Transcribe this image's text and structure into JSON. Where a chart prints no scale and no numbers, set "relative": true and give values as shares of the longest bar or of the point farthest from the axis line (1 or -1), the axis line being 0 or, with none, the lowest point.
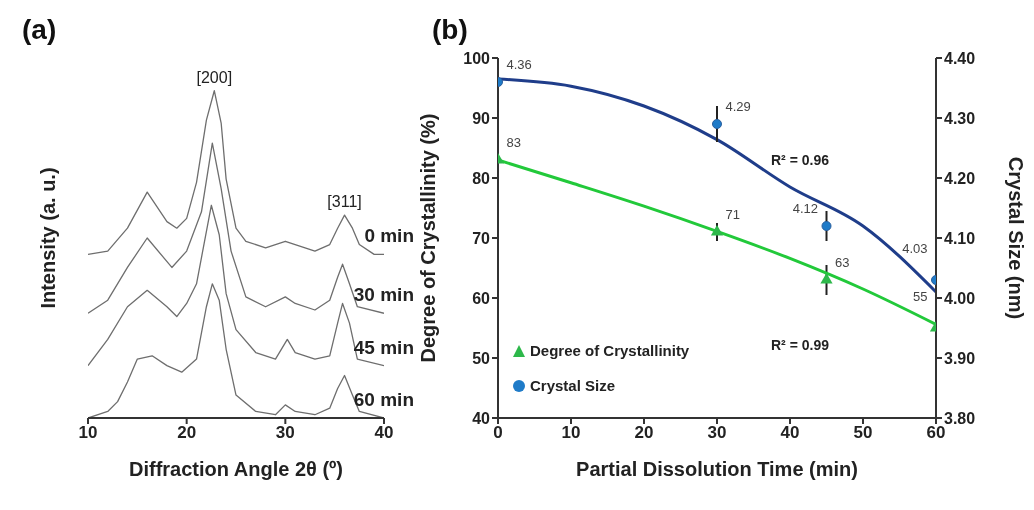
{
  "chart_data": [
    {
      "type": "line",
      "title": "(a)",
      "xlabel": "Diffraction Angle 2θ (º)",
      "ylabel": "Intensity (a. u.)",
      "relative": true,
      "xlim": [
        10,
        40
      ],
      "xticks": [
        10,
        20,
        30,
        40
      ],
      "grid": false,
      "legend": false,
      "marker": "none",
      "annotations": [
        {
          "text": "[200]",
          "x": 22.8,
          "y": 1.0
        },
        {
          "text": "[311]",
          "x": 36,
          "y": 0.62
        }
      ],
      "series": [
        {
          "name": "0 min",
          "color": "#6e6e6e",
          "x": [
            10,
            12,
            14,
            16,
            18,
            19,
            20,
            21,
            22,
            22.8,
            23.5,
            24,
            25,
            26,
            28,
            30,
            31,
            33,
            34.5,
            35.3,
            36,
            36.8,
            37.5,
            39,
            40
          ],
          "values": [
            0.5,
            0.51,
            0.58,
            0.69,
            0.6,
            0.58,
            0.61,
            0.72,
            0.91,
            1.0,
            0.9,
            0.73,
            0.58,
            0.54,
            0.52,
            0.54,
            0.53,
            0.51,
            0.53,
            0.58,
            0.62,
            0.58,
            0.53,
            0.5,
            0.5
          ]
        },
        {
          "name": "30 min",
          "color": "#6e6e6e",
          "x": [
            10,
            12,
            14,
            16,
            18.5,
            20,
            21.5,
            22.6,
            23.5,
            24.5,
            26,
            28,
            30,
            31,
            33,
            34.5,
            35.3,
            35.8,
            36.5,
            37.3,
            40
          ],
          "values": [
            0.32,
            0.36,
            0.46,
            0.55,
            0.46,
            0.51,
            0.63,
            0.84,
            0.7,
            0.51,
            0.37,
            0.34,
            0.37,
            0.35,
            0.33,
            0.36,
            0.43,
            0.47,
            0.41,
            0.34,
            0.32
          ]
        },
        {
          "name": "45 min",
          "color": "#6e6e6e",
          "x": [
            10,
            12,
            14,
            16,
            18,
            19,
            20,
            21,
            22.5,
            23.3,
            24,
            25,
            27,
            29,
            30.2,
            31,
            33,
            34.5,
            35.3,
            35.8,
            36.5,
            37.3,
            40
          ],
          "values": [
            0.16,
            0.24,
            0.34,
            0.39,
            0.34,
            0.31,
            0.35,
            0.41,
            0.65,
            0.56,
            0.38,
            0.27,
            0.2,
            0.18,
            0.24,
            0.2,
            0.18,
            0.19,
            0.29,
            0.35,
            0.29,
            0.18,
            0.16
          ]
        },
        {
          "name": "60 min",
          "color": "#6e6e6e",
          "x": [
            10,
            12,
            13,
            14,
            15,
            16.5,
            18,
            19.5,
            21,
            22,
            22.6,
            23.3,
            24,
            25,
            27,
            29,
            30,
            31,
            33,
            34.5,
            35.3,
            36,
            36.8,
            37.5,
            40
          ],
          "values": [
            0,
            0.02,
            0.05,
            0.11,
            0.18,
            0.19,
            0.16,
            0.14,
            0.18,
            0.34,
            0.41,
            0.36,
            0.21,
            0.07,
            0.02,
            0.01,
            0.04,
            0.02,
            0.01,
            0.03,
            0.09,
            0.13,
            0.07,
            0.02,
            0
          ]
        }
      ]
    },
    {
      "type": "scatter",
      "title": "(b)",
      "xlabel": "Partial Dissolution Time (min)",
      "ylabel": "Degree of Crystallinity (%)",
      "y2label": "Crystal Size (nm)",
      "xlim": [
        0,
        60
      ],
      "xticks": [
        0,
        10,
        20,
        30,
        40,
        50,
        60
      ],
      "ylim": [
        40,
        100
      ],
      "yticks": [
        40,
        50,
        60,
        70,
        80,
        90,
        100
      ],
      "y2lim": [
        3.8,
        4.4
      ],
      "y2ticks": [
        {
          "value": 3.8,
          "label": "3.80"
        },
        {
          "value": 3.9,
          "label": "3.90"
        },
        {
          "value": 4.0,
          "label": "4.00"
        },
        {
          "value": 4.1,
          "label": "4.10"
        },
        {
          "value": 4.2,
          "label": "4.20"
        },
        {
          "value": 4.3,
          "label": "4.30"
        },
        {
          "value": 4.4,
          "label": "4.40"
        }
      ],
      "grid": false,
      "legend": "bottom left",
      "annotations": [
        "R² = 0.96",
        "R² = 0.99"
      ],
      "series": [
        {
          "type": "line",
          "axis": "y2",
          "color": "#1f3d8a",
          "x": [
            0,
            10,
            20,
            30,
            40,
            50,
            60
          ],
          "values": [
            4.365,
            4.353,
            4.32,
            4.264,
            4.185,
            4.12,
            4.01
          ]
        },
        {
          "name": "Degree of Crystallinity",
          "marker": "triangle",
          "color": "#2db84a",
          "x": [
            0,
            30,
            45,
            60
          ],
          "values": [
            83,
            71,
            63,
            55
          ],
          "errors": [
            null,
            1.5,
            2.5,
            null
          ],
          "value_labels": [
            "83",
            "71",
            "63",
            "55"
          ]
        },
        {
          "name": "Crystal Size",
          "marker": "circle",
          "axis": "y2",
          "color": "#1f7bc8",
          "x": [
            0,
            30,
            45,
            60
          ],
          "values": [
            4.36,
            4.29,
            4.12,
            4.03
          ],
          "errors": [
            null,
            0.03,
            0.025,
            null
          ],
          "value_labels": [
            "4.36",
            "4.29",
            "4.12",
            "4.03"
          ]
        },
        {
          "type": "line",
          "color": "#22c93a",
          "x": [
            0,
            10,
            20,
            30,
            40,
            50,
            60
          ],
          "values": [
            83,
            79.2,
            75.3,
            71.1,
            66.6,
            61.5,
            55.6
          ]
        }
      ]
    }
  ]
}
